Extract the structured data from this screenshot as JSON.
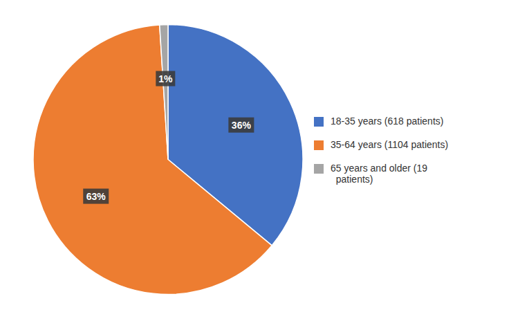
{
  "chart_data": {
    "type": "pie",
    "categories": [
      "18-35 years (618 patients)",
      "35-64 years (1104 patients)",
      "65 years and older (19\n  patients)"
    ],
    "values": [
      36,
      63,
      1
    ],
    "value_labels": [
      "36%",
      "63%",
      "1%"
    ],
    "colors": [
      "#4472C4",
      "#ED7D31",
      "#A5A5A5"
    ],
    "data_labels": true,
    "legend": "right"
  }
}
